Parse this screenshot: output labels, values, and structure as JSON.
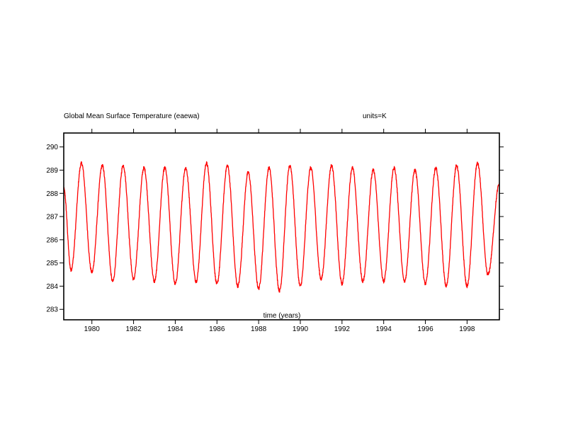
{
  "chart_data": {
    "type": "line",
    "title": "Global Mean Surface Temperature (eaewa)",
    "units_label": "units=K",
    "xlabel": "time (years)",
    "ylabel": "",
    "xlim": [
      1978.65,
      1999.55
    ],
    "ylim": [
      282.55,
      290.6
    ],
    "xticks": [
      1980,
      1982,
      1984,
      1986,
      1988,
      1990,
      1992,
      1994,
      1996,
      1998
    ],
    "xtick_labels": [
      "1980",
      "1982",
      "1984",
      "1986",
      "1988",
      "1990",
      "1992",
      "1994",
      "1996",
      "1998"
    ],
    "yticks": [
      283,
      284,
      285,
      286,
      287,
      288,
      289,
      290
    ],
    "ytick_labels": [
      "283",
      "284",
      "285",
      "286",
      "287",
      "288",
      "289",
      "290"
    ],
    "grid": false,
    "series": [
      {
        "color": "#ff0000",
        "x": [
          1978.65,
          1979.0,
          1979.5,
          1980.0,
          1980.5,
          1981.0,
          1981.5,
          1982.0,
          1982.5,
          1983.0,
          1983.5,
          1984.0,
          1984.5,
          1985.0,
          1985.5,
          1986.0,
          1986.5,
          1987.0,
          1987.5,
          1988.0,
          1988.5,
          1989.0,
          1989.5,
          1990.0,
          1990.5,
          1991.0,
          1991.5,
          1992.0,
          1992.5,
          1993.0,
          1993.5,
          1994.0,
          1994.5,
          1995.0,
          1995.5,
          1996.0,
          1996.5,
          1997.0,
          1997.5,
          1998.0,
          1998.5,
          1999.0,
          1999.55
        ],
        "values": [
          288.2,
          284.7,
          289.3,
          284.6,
          289.2,
          284.2,
          289.2,
          284.3,
          289.1,
          284.2,
          289.1,
          284.1,
          289.1,
          284.2,
          289.3,
          284.1,
          289.2,
          284.0,
          288.9,
          283.9,
          289.1,
          283.8,
          289.2,
          284.0,
          289.1,
          284.3,
          289.2,
          284.1,
          289.1,
          284.2,
          289.0,
          284.2,
          289.1,
          284.2,
          289.0,
          284.1,
          289.1,
          284.0,
          289.2,
          284.0,
          289.3,
          284.5,
          288.4
        ]
      }
    ]
  }
}
